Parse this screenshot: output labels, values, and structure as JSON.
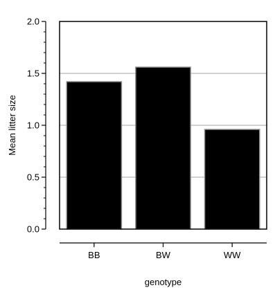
{
  "chart_data": {
    "type": "bar",
    "title": "",
    "xlabel": "genotype",
    "ylabel": "Mean litter size",
    "categories": [
      "BB",
      "BW",
      "WW"
    ],
    "values": [
      1.42,
      1.56,
      0.96
    ],
    "ylim": [
      0,
      2
    ],
    "yticks": [
      "0.0",
      "0.5",
      "1.0",
      "1.5",
      "2.0"
    ],
    "minor_ticks_per_major": 4,
    "grid": "horizontal",
    "legend": "none",
    "colors": {
      "bar_fill": "#000000",
      "bar_edge": "#8c8c8c",
      "grid": "#a6a6a6",
      "frame": "#000000"
    }
  }
}
